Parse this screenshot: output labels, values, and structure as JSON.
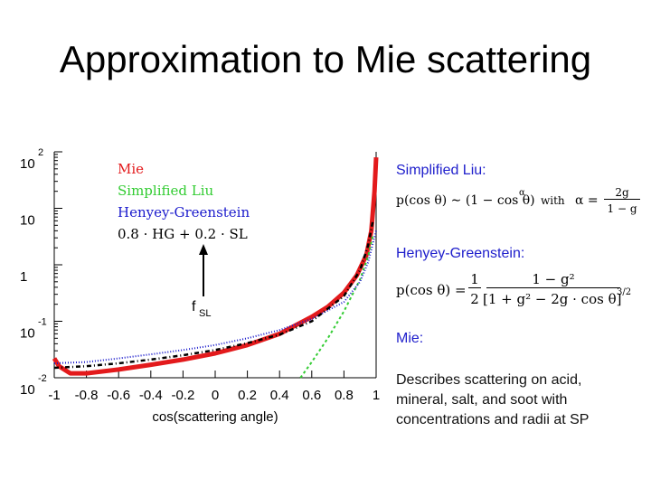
{
  "slide": {
    "title": "Approximation to Mie scattering",
    "annotation": "f",
    "annotation_sub": "SL",
    "rhs": {
      "liu_label": "Simplified Liu:",
      "hg_label": "Henyey-Greenstein:",
      "mie_label": "Mie:",
      "mie_desc_1": "Describes scattering on acid,",
      "mie_desc_2": "mineral, salt, and soot with",
      "mie_desc_3": "concentrations and radii at SP"
    },
    "formulas": {
      "liu_lhs": "p(cos θ) ∼ (1 − cos θ)",
      "liu_exp": "α",
      "liu_with": "with",
      "liu_alpha": "α =",
      "liu_num": "2g",
      "liu_den": "1 − g",
      "hg_lhs": "p(cos θ) =",
      "hg_half_num": "1",
      "hg_half_den": "2",
      "hg_frac_num": "1 − g²",
      "hg_frac_den": "[1 + g² − 2g · cos θ]",
      "hg_den_exp": "3/2"
    }
  },
  "chart_data": {
    "type": "line",
    "xlabel": "cos(scattering angle)",
    "ylabel": "",
    "xlim": [
      -1,
      1
    ],
    "ylim_log10": [
      -2,
      2
    ],
    "yscale": "log",
    "x_ticks": [
      "-1",
      "-0.8",
      "-0.6",
      "-0.4",
      "-0.2",
      "0",
      "0.2",
      "0.4",
      "0.6",
      "0.8",
      "1"
    ],
    "y_ticks": [
      {
        "base": "10",
        "exp": "2",
        "value": 100
      },
      {
        "base": "10",
        "exp": "",
        "value": 10
      },
      {
        "base": "1",
        "exp": "",
        "value": 1
      },
      {
        "base": "10",
        "exp": "-1",
        "value": 0.1
      },
      {
        "base": "10",
        "exp": "-2",
        "value": 0.01
      }
    ],
    "legend_position": "top-left",
    "series": [
      {
        "name": "Mie",
        "color": "#e31a1c",
        "style": "thick-solid",
        "x": [
          -1.0,
          -0.97,
          -0.9,
          -0.8,
          -0.6,
          -0.4,
          -0.2,
          0.0,
          0.2,
          0.4,
          0.5,
          0.6,
          0.7,
          0.8,
          0.88,
          0.94,
          0.97,
          0.99,
          1.0
        ],
        "y": [
          0.022,
          0.016,
          0.012,
          0.012,
          0.014,
          0.017,
          0.021,
          0.027,
          0.038,
          0.06,
          0.085,
          0.12,
          0.18,
          0.32,
          0.65,
          1.5,
          4.0,
          20.0,
          80.0
        ]
      },
      {
        "name": "Simplified Liu",
        "color": "#33cc33",
        "style": "dashed",
        "x": [
          0.53,
          0.6,
          0.7,
          0.8,
          0.9,
          0.95,
          0.98
        ],
        "y": [
          0.01,
          0.019,
          0.05,
          0.15,
          0.55,
          1.4,
          3.3
        ]
      },
      {
        "name": "Henyey-Greenstein",
        "color": "#1a1acc",
        "style": "dotted",
        "x": [
          -1.0,
          -0.8,
          -0.6,
          -0.4,
          -0.2,
          0.0,
          0.2,
          0.4,
          0.6,
          0.8,
          0.9,
          0.95,
          1.0
        ],
        "y": [
          0.018,
          0.019,
          0.022,
          0.026,
          0.031,
          0.038,
          0.05,
          0.07,
          0.11,
          0.22,
          0.5,
          1.1,
          4.0
        ]
      },
      {
        "name": "0.8 · HG + 0.2 · SL",
        "color": "#000000",
        "style": "dash-dot",
        "x": [
          -1.0,
          -0.8,
          -0.6,
          -0.4,
          -0.2,
          0.0,
          0.2,
          0.4,
          0.6,
          0.8,
          0.9,
          0.95,
          0.98
        ],
        "y": [
          0.015,
          0.016,
          0.018,
          0.021,
          0.025,
          0.031,
          0.041,
          0.058,
          0.1,
          0.28,
          0.8,
          2.2,
          6.0
        ]
      }
    ]
  }
}
